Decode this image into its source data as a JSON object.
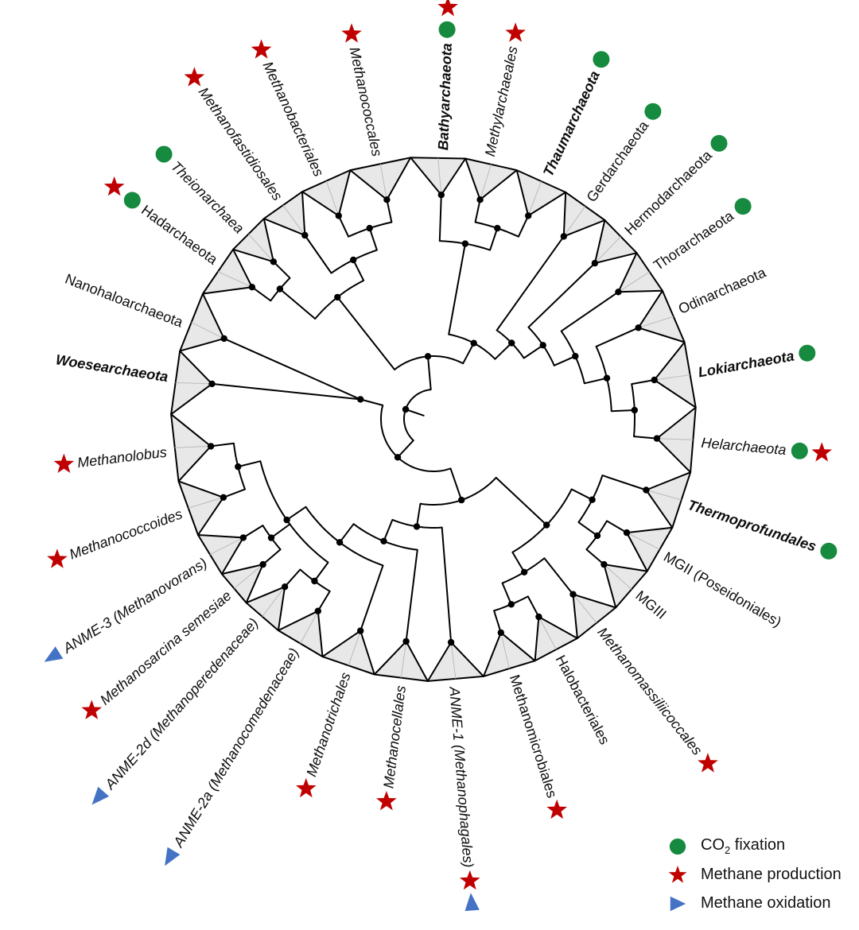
{
  "figure": {
    "type": "circular-phylogenetic-tree",
    "description": "Circular cladogram of Archaea with collapsed clade wedges and metabolic trait markers",
    "colors": {
      "co2_fixation": "#168a3e",
      "methane_production": "#c00000",
      "methane_oxidation": "#4472c4",
      "branch": "#000000",
      "wedge_fill": "#e8e8e8",
      "wedge_inner_line": "#bbbbbb",
      "label_text": "#0d0d0d"
    },
    "taxa": [
      {
        "name": "Thermoprofundales",
        "angle": 108.5,
        "bold": true,
        "italic": true,
        "markers": [
          "co2"
        ]
      },
      {
        "name": "MGII (Poseidoniales)",
        "angle": 120.5,
        "bold": false,
        "italic": false,
        "markers": []
      },
      {
        "name": "MGIII",
        "angle": 130.5,
        "bold": false,
        "italic": false,
        "markers": []
      },
      {
        "name": "Methanomassiliicoccales",
        "angle": 141.5,
        "bold": false,
        "italic": true,
        "markers": [
          "methane_prod"
        ]
      },
      {
        "name": "Halobacteriales",
        "angle": 152.0,
        "bold": false,
        "italic": false,
        "markers": []
      },
      {
        "name": "Methanomicrobiales",
        "angle": 162.5,
        "bold": false,
        "italic": false,
        "markers": [
          "methane_prod"
        ]
      },
      {
        "name": "ANME-1 (Methanophagales)",
        "angle": 175.5,
        "bold": false,
        "italic": true,
        "markers": [
          "methane_prod",
          "methane_ox"
        ]
      },
      {
        "name": "Methanocellales",
        "angle": 187.0,
        "bold": false,
        "italic": true,
        "markers": [
          "methane_prod"
        ]
      },
      {
        "name": "Methanotrichales",
        "angle": 199.0,
        "bold": false,
        "italic": true,
        "markers": [
          "methane_prod"
        ]
      },
      {
        "name": "ANME-2a (Methanocomedenaceae)",
        "angle": 211.0,
        "bold": false,
        "italic": true,
        "markers": [
          "methane_ox"
        ]
      },
      {
        "name": "ANME-2d (Methanoperedenaceae)",
        "angle": 221.5,
        "bold": false,
        "italic": true,
        "markers": [
          "methane_ox"
        ]
      },
      {
        "name": "Methanosarcina semesiae",
        "angle": 229.5,
        "bold": false,
        "italic": true,
        "markers": [
          "methane_prod"
        ]
      },
      {
        "name": "ANME-3 (Methanovorans)",
        "angle": 238.0,
        "bold": false,
        "italic": true,
        "markers": [
          "methane_ox"
        ]
      },
      {
        "name": "Methanococcoides",
        "angle": 249.5,
        "bold": false,
        "italic": true,
        "markers": [
          "methane_prod"
        ]
      },
      {
        "name": "Methanolobus",
        "angle": 263.0,
        "bold": false,
        "italic": true,
        "markers": [
          "methane_prod"
        ]
      },
      {
        "name": "Woesearchaeota",
        "angle": 279.0,
        "bold": true,
        "italic": true,
        "markers": []
      },
      {
        "name": "Nanohaloarchaeota",
        "angle": 291.0,
        "bold": false,
        "italic": false,
        "markers": []
      },
      {
        "name": "Hadarchaeota",
        "angle": 306.0,
        "bold": false,
        "italic": false,
        "markers": [
          "co2",
          "methane_prod"
        ]
      },
      {
        "name": "Theionarchaea",
        "angle": 314.5,
        "bold": false,
        "italic": true,
        "markers": [
          "co2"
        ]
      },
      {
        "name": "Methanofastidiosales",
        "angle": 325.0,
        "bold": false,
        "italic": true,
        "markers": [
          "methane_prod"
        ]
      },
      {
        "name": "Methanobacteriales",
        "angle": 335.0,
        "bold": false,
        "italic": true,
        "markers": [
          "methane_prod"
        ]
      },
      {
        "name": "Methanococcales",
        "angle": 348.0,
        "bold": false,
        "italic": true,
        "markers": [
          "methane_prod"
        ]
      },
      {
        "name": "Bathyarchaeota",
        "angle": 362.0,
        "bold": true,
        "italic": true,
        "markers": [
          "co2",
          "methane_prod"
        ]
      },
      {
        "name": "Methylarchaeales",
        "angle": 372.0,
        "bold": false,
        "italic": true,
        "markers": [
          "methane_prod"
        ]
      },
      {
        "name": "Thaumarchaeota",
        "angle": 385.0,
        "bold": true,
        "italic": true,
        "markers": [
          "co2"
        ]
      },
      {
        "name": "Gerdarchaeota",
        "angle": 395.5,
        "bold": false,
        "italic": false,
        "markers": [
          "co2"
        ]
      },
      {
        "name": "Hermodarchaeota",
        "angle": 406.0,
        "bold": false,
        "italic": false,
        "markers": [
          "co2"
        ]
      },
      {
        "name": "Thorarchaeota",
        "angle": 415.5,
        "bold": false,
        "italic": false,
        "markers": [
          "co2"
        ]
      },
      {
        "name": "Odinarchaeota",
        "angle": 426.0,
        "bold": false,
        "italic": false,
        "markers": []
      },
      {
        "name": "Lokiarchaeota",
        "angle": 440.0,
        "bold": true,
        "italic": true,
        "markers": [
          "co2"
        ]
      },
      {
        "name": "Helarchaeota",
        "angle": 455.0,
        "bold": false,
        "italic": true,
        "markers": [
          "co2",
          "methane_prod"
        ]
      }
    ],
    "topology": {
      "c": [
        {
          "c": [
            {
              "c": [
                {
                  "c": [
                    {
                      "c": [
                        0,
                        {
                          "c": [
                            1,
                            2
                          ]
                        }
                      ]
                    },
                    {
                      "c": [
                        3,
                        {
                          "c": [
                            4,
                            5
                          ]
                        }
                      ]
                    }
                  ]
                },
                {
                  "c": [
                    6,
                    {
                      "c": [
                        7,
                        {
                          "c": [
                            8,
                            {
                              "c": [
                                {
                                  "c": [
                                    9,
                                    10
                                  ]
                                },
                                {
                                  "c": [
                                    11,
                                    12
                                  ]
                                },
                                {
                                  "c": [
                                    13,
                                    14
                                  ]
                                }
                              ]
                            }
                          ]
                        }
                      ]
                    }
                  ]
                }
              ]
            },
            {
              "c": [
                15,
                16
              ],
              "r": 95,
              "slant": true
            }
          ]
        },
        {
          "c": [
            {
              "c": [
                {
                  "c": [
                    17,
                    18
                  ]
                },
                {
                  "c": [
                    19,
                    {
                      "c": [
                        20,
                        21
                      ]
                    }
                  ]
                }
              ]
            },
            {
              "c": [
                {
                  "c": [
                    22,
                    {
                      "c": [
                        23,
                        24
                      ]
                    }
                  ]
                },
                {
                  "c": [
                    25,
                    {
                      "c": [
                        26,
                        {
                          "c": [
                            27,
                            {
                              "c": [
                                28,
                                {
                                  "c": [
                                    29,
                                    30
                                  ]
                                }
                              ]
                            }
                          ]
                        }
                      ]
                    }
                  ]
                }
              ]
            }
          ]
        }
      ]
    },
    "legend": {
      "co2": {
        "pre": "CO",
        "sub": "2",
        "post": " fixation"
      },
      "production": "Methane production",
      "oxidation": "Methane oxidation"
    }
  }
}
